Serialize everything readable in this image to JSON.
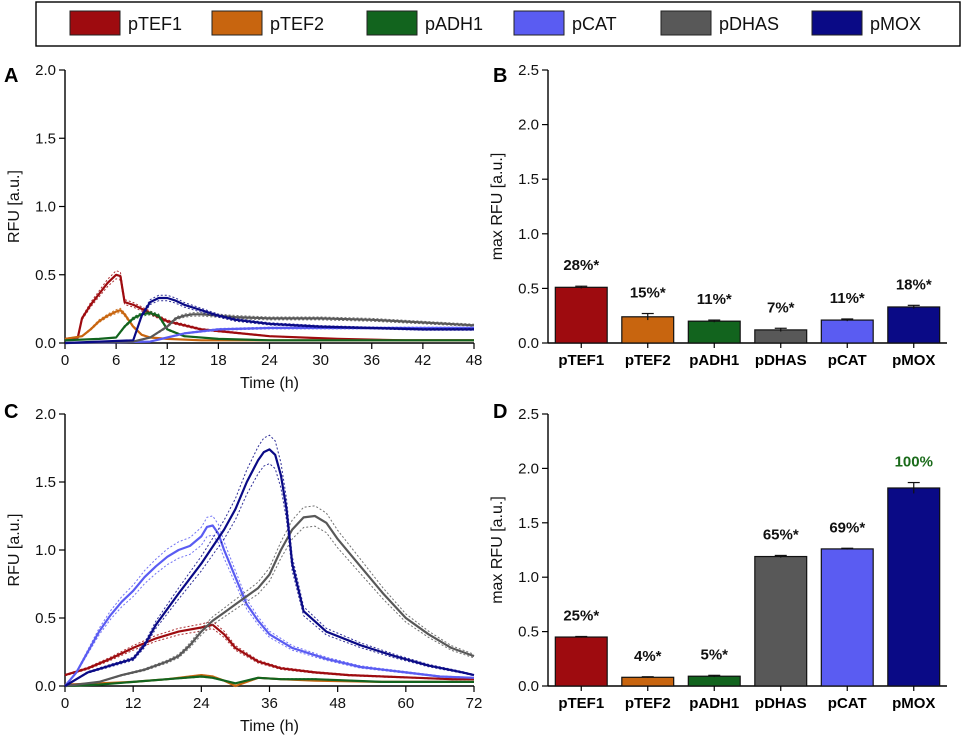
{
  "legend": [
    {
      "label": "pTEF1",
      "color": "#9e0b0f"
    },
    {
      "label": "pTEF2",
      "color": "#c8650f"
    },
    {
      "label": "pADH1",
      "color": "#12641e"
    },
    {
      "label": "pCAT",
      "color": "#5a5cf2"
    },
    {
      "label": "pDHAS",
      "color": "#585858"
    },
    {
      "label": "pMOX",
      "color": "#0a0a86"
    }
  ],
  "chart_data": [
    {
      "panel": "A",
      "type": "line",
      "xlabel": "Time (h)",
      "ylabel": "RFU [a.u.]",
      "xlim": [
        0,
        48
      ],
      "ylim": [
        0,
        2.0
      ],
      "xticks": [
        "0",
        "6",
        "12",
        "18",
        "24",
        "30",
        "36",
        "42",
        "48"
      ],
      "yticks": [
        "0.0",
        "0.5",
        "1.0",
        "1.5",
        "2.0"
      ],
      "series": [
        {
          "name": "pTEF1",
          "color": "#9e0b0f",
          "x": [
            0,
            1.5,
            2,
            3,
            4,
            5,
            6,
            6.5,
            7,
            8,
            10,
            12,
            16,
            24,
            32,
            40,
            48
          ],
          "y": [
            0.03,
            0.04,
            0.18,
            0.28,
            0.36,
            0.44,
            0.5,
            0.49,
            0.3,
            0.28,
            0.22,
            0.16,
            0.1,
            0.05,
            0.03,
            0.02,
            0.02
          ]
        },
        {
          "name": "pTEF2",
          "color": "#c8650f",
          "x": [
            0,
            2,
            3,
            4,
            5,
            6,
            6.5,
            7,
            8,
            9,
            10,
            12,
            16,
            24,
            36,
            48
          ],
          "y": [
            0.03,
            0.05,
            0.1,
            0.16,
            0.2,
            0.23,
            0.24,
            0.21,
            0.12,
            0.06,
            0.04,
            0.03,
            0.02,
            0.02,
            0.02,
            0.02
          ]
        },
        {
          "name": "pADH1",
          "color": "#12641e",
          "x": [
            0,
            4,
            6,
            7,
            8,
            9,
            10,
            11,
            12,
            14,
            18,
            24,
            36,
            48
          ],
          "y": [
            0.02,
            0.03,
            0.04,
            0.12,
            0.18,
            0.21,
            0.22,
            0.2,
            0.1,
            0.05,
            0.03,
            0.02,
            0.02,
            0.02
          ]
        },
        {
          "name": "pCAT",
          "color": "#5a5cf2",
          "x": [
            0,
            10,
            12,
            14,
            18,
            24,
            30,
            36,
            42,
            48
          ],
          "y": [
            0.0,
            0.01,
            0.04,
            0.07,
            0.1,
            0.11,
            0.11,
            0.11,
            0.11,
            0.11
          ]
        },
        {
          "name": "pDHAS",
          "color": "#585858",
          "x": [
            0,
            8,
            10,
            12,
            13,
            14,
            15,
            16,
            18,
            20,
            24,
            30,
            36,
            42,
            48
          ],
          "y": [
            0.0,
            0.01,
            0.04,
            0.12,
            0.18,
            0.2,
            0.21,
            0.21,
            0.2,
            0.19,
            0.18,
            0.18,
            0.17,
            0.15,
            0.13
          ]
        },
        {
          "name": "pMOX",
          "color": "#0a0a86",
          "x": [
            0,
            8,
            9,
            10,
            11,
            12,
            13,
            14,
            16,
            18,
            20,
            24,
            30,
            36,
            42,
            48
          ],
          "y": [
            0.0,
            0.02,
            0.2,
            0.3,
            0.33,
            0.33,
            0.31,
            0.28,
            0.24,
            0.2,
            0.17,
            0.14,
            0.12,
            0.11,
            0.1,
            0.1
          ]
        }
      ]
    },
    {
      "panel": "B",
      "type": "bar",
      "ylabel": "max RFU [a.u.]",
      "ylim": [
        0,
        2.5
      ],
      "yticks": [
        "0.0",
        "0.5",
        "1.0",
        "1.5",
        "2.0",
        "2.5"
      ],
      "categories": [
        "pTEF1",
        "pTEF2",
        "pADH1",
        "pDHAS",
        "pCAT",
        "pMOX"
      ],
      "values": [
        0.51,
        0.24,
        0.2,
        0.12,
        0.21,
        0.33
      ],
      "errors": [
        0.01,
        0.03,
        0.01,
        0.015,
        0.01,
        0.015
      ],
      "colors": [
        "#9e0b0f",
        "#c8650f",
        "#12641e",
        "#585858",
        "#5a5cf2",
        "#0a0a86"
      ],
      "labels": [
        "28%*",
        "15%*",
        "11%*",
        "7%*",
        "11%*",
        "18%*"
      ],
      "label_colors": [
        "#111111",
        "#111111",
        "#111111",
        "#111111",
        "#111111",
        "#111111"
      ]
    },
    {
      "panel": "C",
      "type": "line",
      "xlabel": "Time (h)",
      "ylabel": "RFU [a.u.]",
      "xlim": [
        0,
        72
      ],
      "ylim": [
        0,
        2.0
      ],
      "xticks": [
        "0",
        "12",
        "24",
        "36",
        "48",
        "60",
        "72"
      ],
      "yticks": [
        "0.0",
        "0.5",
        "1.0",
        "1.5",
        "2.0"
      ],
      "series": [
        {
          "name": "pTEF1",
          "color": "#9e0b0f",
          "x": [
            0,
            4,
            8,
            12,
            16,
            20,
            24,
            26,
            28,
            30,
            34,
            38,
            44,
            50,
            56,
            62,
            68,
            72
          ],
          "y": [
            0.08,
            0.13,
            0.2,
            0.28,
            0.35,
            0.4,
            0.43,
            0.45,
            0.38,
            0.28,
            0.18,
            0.13,
            0.1,
            0.08,
            0.07,
            0.06,
            0.05,
            0.05
          ]
        },
        {
          "name": "pTEF2",
          "color": "#c8650f",
          "x": [
            0,
            6,
            12,
            18,
            22,
            24,
            26,
            28,
            29,
            30,
            32,
            34,
            38,
            44,
            56,
            72
          ],
          "y": [
            0.01,
            0.02,
            0.03,
            0.05,
            0.07,
            0.08,
            0.07,
            0.04,
            0.02,
            0.0,
            0.03,
            0.06,
            0.05,
            0.04,
            0.03,
            0.03
          ]
        },
        {
          "name": "pADH1",
          "color": "#12641e",
          "x": [
            0,
            6,
            12,
            18,
            24,
            26,
            28,
            30,
            32,
            34,
            38,
            44,
            56,
            72
          ],
          "y": [
            0.0,
            0.01,
            0.03,
            0.05,
            0.07,
            0.06,
            0.04,
            0.02,
            0.04,
            0.06,
            0.05,
            0.05,
            0.03,
            0.03
          ]
        },
        {
          "name": "pCAT",
          "color": "#5a5cf2",
          "x": [
            0,
            2,
            4,
            6,
            8,
            10,
            12,
            14,
            16,
            18,
            20,
            22,
            24,
            25,
            26,
            27,
            28,
            30,
            32,
            34,
            36,
            40,
            46,
            52,
            60,
            66,
            72
          ],
          "y": [
            0.0,
            0.1,
            0.25,
            0.4,
            0.52,
            0.62,
            0.7,
            0.8,
            0.88,
            0.95,
            1.0,
            1.03,
            1.1,
            1.17,
            1.18,
            1.12,
            1.0,
            0.8,
            0.6,
            0.48,
            0.38,
            0.28,
            0.2,
            0.14,
            0.1,
            0.07,
            0.06
          ]
        },
        {
          "name": "pDHAS",
          "color": "#585858",
          "x": [
            0,
            6,
            10,
            14,
            18,
            20,
            22,
            24,
            26,
            28,
            30,
            32,
            34,
            36,
            38,
            40,
            42,
            44,
            46,
            48,
            52,
            56,
            60,
            64,
            68,
            72
          ],
          "y": [
            0.0,
            0.03,
            0.08,
            0.12,
            0.18,
            0.22,
            0.3,
            0.4,
            0.48,
            0.54,
            0.6,
            0.66,
            0.72,
            0.82,
            1.0,
            1.15,
            1.24,
            1.25,
            1.2,
            1.08,
            0.88,
            0.68,
            0.5,
            0.38,
            0.28,
            0.22
          ]
        },
        {
          "name": "pMOX",
          "color": "#0a0a86",
          "x": [
            0,
            4,
            8,
            12,
            14,
            16,
            20,
            24,
            28,
            30,
            32,
            34,
            35,
            36,
            37,
            38,
            39,
            40,
            42,
            46,
            52,
            58,
            64,
            70,
            72
          ],
          "y": [
            0.0,
            0.1,
            0.15,
            0.2,
            0.3,
            0.45,
            0.68,
            0.9,
            1.15,
            1.3,
            1.5,
            1.66,
            1.72,
            1.74,
            1.7,
            1.55,
            1.3,
            0.9,
            0.55,
            0.4,
            0.3,
            0.22,
            0.15,
            0.1,
            0.08
          ]
        }
      ]
    },
    {
      "panel": "D",
      "type": "bar",
      "ylabel": "max RFU [a.u.]",
      "ylim": [
        0,
        2.5
      ],
      "yticks": [
        "0.0",
        "0.5",
        "1.0",
        "1.5",
        "2.0",
        "2.5"
      ],
      "categories": [
        "pTEF1",
        "pTEF2",
        "pADH1",
        "pDHAS",
        "pCAT",
        "pMOX"
      ],
      "values": [
        0.45,
        0.08,
        0.09,
        1.19,
        1.26,
        1.82
      ],
      "errors": [
        0.005,
        0.005,
        0.008,
        0.01,
        0.006,
        0.05
      ],
      "colors": [
        "#9e0b0f",
        "#c8650f",
        "#12641e",
        "#585858",
        "#5a5cf2",
        "#0a0a86"
      ],
      "labels": [
        "25%*",
        "4%*",
        "5%*",
        "65%*",
        "69%*",
        "100%"
      ],
      "label_colors": [
        "#111111",
        "#111111",
        "#111111",
        "#111111",
        "#111111",
        "#1a6b1a"
      ]
    }
  ]
}
